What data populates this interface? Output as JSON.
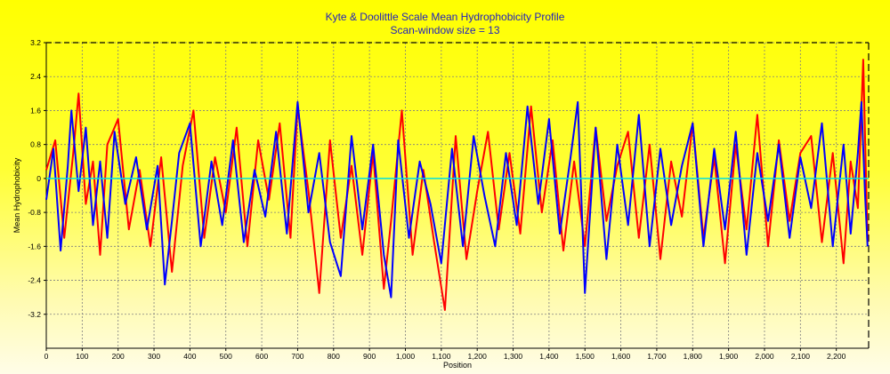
{
  "chart_data": {
    "type": "line",
    "title": "Kyte & Doolittle Scale Mean Hydrophobicity Profile",
    "subtitle": "Scan-window size = 13",
    "xlabel": "Position",
    "ylabel": "Mean  Hydrophobicity",
    "xlim": [
      0,
      2290
    ],
    "ylim": [
      -4.0,
      3.2
    ],
    "x_ticks": [
      0,
      100,
      200,
      300,
      400,
      500,
      600,
      700,
      800,
      900,
      1000,
      1100,
      1200,
      1300,
      1400,
      1500,
      1600,
      1700,
      1800,
      1900,
      2000,
      2100,
      2200
    ],
    "x_tick_labels": [
      "0",
      "100",
      "200",
      "300",
      "400",
      "500",
      "600",
      "700",
      "800",
      "900",
      "1,000",
      "1,100",
      "1,200",
      "1,300",
      "1,400",
      "1,500",
      "1,600",
      "1,700",
      "1,800",
      "1,900",
      "2,000",
      "2,100",
      "2,200"
    ],
    "y_ticks": [
      3.2,
      2.4,
      1.6,
      0.8,
      0,
      -0.8,
      -1.6,
      -2.4,
      -3.2
    ],
    "y_tick_labels": [
      "3.2",
      "2.4",
      "1.6",
      "0.8",
      "0",
      "-0.8",
      "-1.6",
      "-2.4",
      "-3.2"
    ],
    "grid": true,
    "baseline": 0,
    "colors": {
      "series_a": "#ff0000",
      "series_b": "#0000ff",
      "baseline": "#00e0e0",
      "grid": "#7f7f7f",
      "title": "#1f1fbf"
    },
    "series": [
      {
        "color": "#ff0000",
        "x": [
          0,
          25,
          50,
          75,
          90,
          110,
          130,
          150,
          170,
          200,
          230,
          260,
          290,
          320,
          350,
          380,
          410,
          440,
          470,
          500,
          530,
          560,
          590,
          620,
          650,
          680,
          700,
          730,
          760,
          790,
          820,
          850,
          880,
          910,
          940,
          960,
          990,
          1020,
          1050,
          1080,
          1110,
          1140,
          1170,
          1200,
          1230,
          1260,
          1290,
          1320,
          1350,
          1380,
          1410,
          1440,
          1470,
          1500,
          1530,
          1560,
          1590,
          1620,
          1650,
          1680,
          1710,
          1740,
          1770,
          1800,
          1830,
          1860,
          1890,
          1920,
          1950,
          1980,
          2010,
          2040,
          2070,
          2100,
          2130,
          2160,
          2190,
          2220,
          2240,
          2260,
          2275,
          2287
        ],
        "values": [
          0.2,
          0.9,
          -1.4,
          0.6,
          2.0,
          -0.6,
          0.4,
          -1.8,
          0.8,
          1.4,
          -1.2,
          0.2,
          -1.6,
          0.5,
          -2.2,
          0.3,
          1.6,
          -1.4,
          0.5,
          -0.8,
          1.2,
          -1.6,
          0.9,
          -0.5,
          1.3,
          -1.4,
          1.7,
          -0.3,
          -2.7,
          0.9,
          -1.4,
          0.3,
          -1.8,
          0.6,
          -2.6,
          -1.0,
          1.6,
          -1.8,
          0.2,
          -1.5,
          -3.1,
          1.0,
          -1.9,
          -0.3,
          1.1,
          -1.2,
          0.6,
          -1.3,
          1.7,
          -0.8,
          0.9,
          -1.7,
          0.4,
          -1.6,
          1.2,
          -1.0,
          0.3,
          1.1,
          -1.4,
          0.8,
          -1.9,
          0.4,
          -0.9,
          1.3,
          -1.4,
          0.5,
          -2.0,
          0.8,
          -1.2,
          1.5,
          -1.6,
          0.9,
          -1.0,
          0.6,
          1.0,
          -1.5,
          0.6,
          -2.0,
          0.4,
          -0.7,
          2.8,
          -1.5
        ]
      },
      {
        "color": "#0000ff",
        "x": [
          0,
          20,
          40,
          60,
          70,
          90,
          110,
          130,
          150,
          170,
          190,
          220,
          250,
          280,
          310,
          330,
          350,
          370,
          400,
          430,
          460,
          490,
          520,
          550,
          580,
          610,
          640,
          670,
          700,
          730,
          760,
          790,
          820,
          850,
          880,
          910,
          940,
          960,
          980,
          1010,
          1040,
          1070,
          1100,
          1130,
          1160,
          1190,
          1220,
          1250,
          1280,
          1310,
          1340,
          1370,
          1400,
          1430,
          1460,
          1480,
          1500,
          1530,
          1560,
          1590,
          1620,
          1650,
          1680,
          1710,
          1740,
          1770,
          1800,
          1830,
          1860,
          1890,
          1920,
          1950,
          1980,
          2010,
          2040,
          2070,
          2100,
          2130,
          2160,
          2190,
          2220,
          2240,
          2260,
          2270,
          2280,
          2287
        ],
        "values": [
          -0.5,
          0.7,
          -1.7,
          0.3,
          1.6,
          -0.3,
          1.2,
          -1.1,
          0.4,
          -1.4,
          1.1,
          -0.6,
          0.5,
          -1.2,
          0.3,
          -2.5,
          -1.0,
          0.6,
          1.3,
          -1.6,
          0.4,
          -1.1,
          0.9,
          -1.5,
          0.2,
          -0.9,
          1.1,
          -1.3,
          1.8,
          -0.8,
          0.6,
          -1.5,
          -2.3,
          1.0,
          -1.2,
          0.8,
          -1.8,
          -2.8,
          0.9,
          -1.4,
          0.4,
          -0.6,
          -2.0,
          0.7,
          -1.6,
          1.0,
          -0.4,
          -1.6,
          0.6,
          -1.1,
          1.7,
          -0.6,
          1.4,
          -1.3,
          0.5,
          1.8,
          -2.7,
          1.2,
          -1.9,
          0.8,
          -1.1,
          1.5,
          -1.6,
          0.7,
          -1.1,
          0.3,
          1.3,
          -1.6,
          0.7,
          -1.2,
          1.1,
          -1.8,
          0.6,
          -1.0,
          0.8,
          -1.4,
          0.5,
          -0.7,
          1.3,
          -1.6,
          0.8,
          -1.3,
          0.6,
          1.8,
          -0.4,
          -1.6
        ]
      }
    ]
  }
}
